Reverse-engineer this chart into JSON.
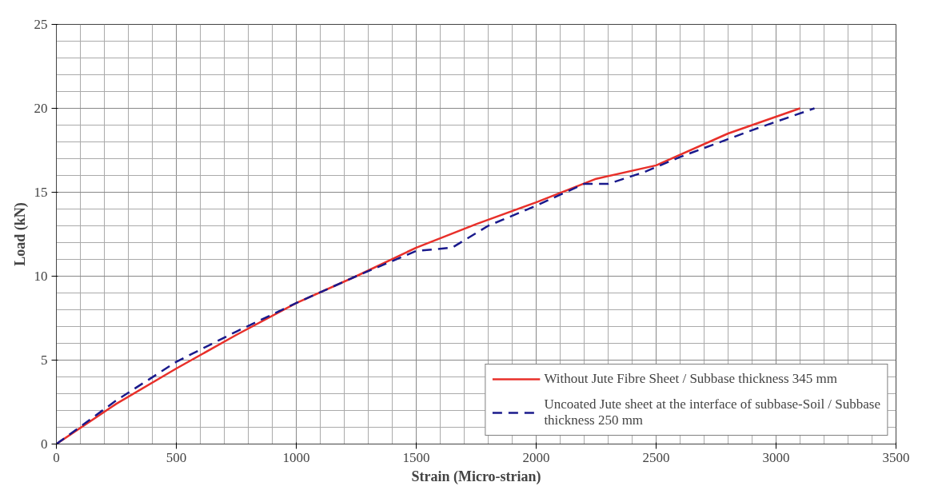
{
  "chart_data": {
    "type": "line",
    "xlabel": "Strain (Micro-strian)",
    "ylabel": "Load (kN)",
    "xlim": [
      0,
      3500
    ],
    "xticks": [
      0,
      500,
      1000,
      1500,
      2000,
      2500,
      3000,
      3500
    ],
    "ylim": [
      0,
      25
    ],
    "yticks": [
      0,
      5,
      10,
      15,
      20,
      25
    ],
    "grid": true,
    "legend": "bottom right",
    "series": [
      {
        "name": "Without Jute Fibre Sheet / Subbase thickness 345 mm",
        "color": "#e8302a",
        "line_style": "solid",
        "x": [
          0,
          250,
          500,
          750,
          1000,
          1250,
          1500,
          1750,
          2000,
          2250,
          2500,
          2800,
          3100
        ],
        "values": [
          0,
          2.4,
          4.5,
          6.5,
          8.4,
          10.0,
          11.7,
          13.1,
          14.4,
          15.8,
          16.6,
          18.5,
          20
        ]
      },
      {
        "name": "Uncoated Jute sheet at the interface of subbase-Soil / Subbase thickness 250 mm",
        "color": "#1a1a8c",
        "line_style": "dashed",
        "x": [
          0,
          250,
          500,
          750,
          1000,
          1250,
          1500,
          1650,
          1800,
          2000,
          2200,
          2300,
          2450,
          2600,
          2900,
          3160
        ],
        "values": [
          0,
          2.6,
          4.9,
          6.7,
          8.4,
          10.0,
          11.5,
          11.7,
          13.0,
          14.2,
          15.5,
          15.5,
          16.2,
          17.1,
          18.7,
          20
        ]
      }
    ]
  }
}
